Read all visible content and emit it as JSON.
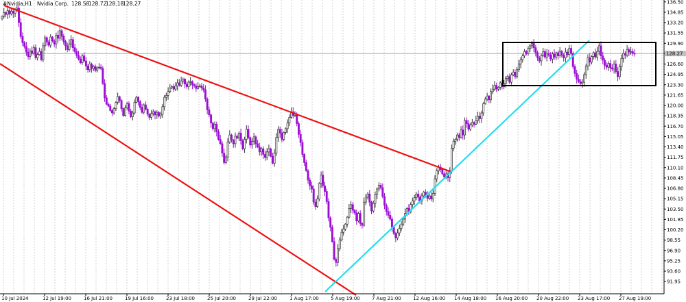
{
  "chart_data": {
    "type": "candlestick",
    "symbol": "#Nvidia,H1",
    "instrument": "Nvidia Corp.",
    "ohlc": [
      "128.58",
      "128.72",
      "128.18",
      "128.27"
    ],
    "current_price": "128.27",
    "ylim": [
      90.0,
      136.8
    ],
    "y_ticks": [
      "136.50",
      "134.85",
      "133.20",
      "131.55",
      "129.90",
      "128.25",
      "126.60",
      "124.95",
      "123.30",
      "121.65",
      "120.00",
      "118.35",
      "116.70",
      "115.05",
      "113.40",
      "111.75",
      "110.10",
      "108.45",
      "106.80",
      "105.15",
      "103.50",
      "101.85",
      "100.20",
      "98.55",
      "96.90",
      "95.25",
      "93.60",
      "91.95"
    ],
    "x_labels": [
      "10 Jul 2024",
      "12 Jul 19:00",
      "16 Jul 21:00",
      "19 Jul 16:00",
      "23 Jul 18:00",
      "25 Jul 20:00",
      "29 Jul 22:00",
      "1 Aug 17:00",
      "5 Aug 19:00",
      "7 Aug 21:00",
      "12 Aug 16:00",
      "14 Aug 18:00",
      "16 Aug 20:00",
      "20 Aug 22:00",
      "23 Aug 17:00",
      "27 Aug 19:00"
    ],
    "closes": [
      134.2,
      134.8,
      134.5,
      135.1,
      134.6,
      135.0,
      134.7,
      135.3,
      135.5,
      133.2,
      131.0,
      130.0,
      129.4,
      128.5,
      127.8,
      128.7,
      128.3,
      129.2,
      127.6,
      128.1,
      128.6,
      127.3,
      129.5,
      130.8,
      130.1,
      129.6,
      130.9,
      130.3,
      129.8,
      131.2,
      130.7,
      131.9,
      131.0,
      130.2,
      129.5,
      128.9,
      129.8,
      130.5,
      129.2,
      128.6,
      128.0,
      127.4,
      126.8,
      127.9,
      127.1,
      126.3,
      125.7,
      126.6,
      125.9,
      126.2,
      125.6,
      126.0,
      126.1,
      125.9,
      123.5,
      121.2,
      120.2,
      119.9,
      119.2,
      118.8,
      119.5,
      120.5,
      121.4,
      120.8,
      119.5,
      118.4,
      119.6,
      120.3,
      119.1,
      118.2,
      118.8,
      120.5,
      121.3,
      120.6,
      119.7,
      118.9,
      120.1,
      119.4,
      118.6,
      118.1,
      118.7,
      119.0,
      118.5,
      118.9,
      118.3,
      118.6,
      119.8,
      121.3,
      121.6,
      122.2,
      122.8,
      123.0,
      122.6,
      123.1,
      123.6,
      123.2,
      123.9,
      124.2,
      123.4,
      123.0,
      123.7,
      123.8,
      123.3,
      123.1,
      122.7,
      123.0,
      123.1,
      122.8,
      122.5,
      121.0,
      119.3,
      118.5,
      117.2,
      116.3,
      117.0,
      115.8,
      114.6,
      113.9,
      112.4,
      110.9,
      111.8,
      114.2,
      115.3,
      114.5,
      113.9,
      115.1,
      114.8,
      115.6,
      114.4,
      113.1,
      114.6,
      116.2,
      114.9,
      113.7,
      114.3,
      115.0,
      113.9,
      113.4,
      112.6,
      113.1,
      112.2,
      111.7,
      112.6,
      113.1,
      111.9,
      110.8,
      112.4,
      114.9,
      116.2,
      115.6,
      114.6,
      115.7,
      116.3,
      117.2,
      118.1,
      119.0,
      118.4,
      118.6,
      117.1,
      115.4,
      114.1,
      112.2,
      110.9,
      109.6,
      108.1,
      107.2,
      106.7,
      104.6,
      103.9,
      105.1,
      107.6,
      108.9,
      107.2,
      106.3,
      104.7,
      102.1,
      100.6,
      98.3,
      95.5,
      95.0,
      97.2,
      98.6,
      99.8,
      100.3,
      101.1,
      102.2,
      103.6,
      104.2,
      103.3,
      102.9,
      101.6,
      102.8,
      101.2,
      100.9,
      104.6,
      105.4,
      105.9,
      104.6,
      103.2,
      104.4,
      105.8,
      106.7,
      107.3,
      106.9,
      105.5,
      104.1,
      103.1,
      102.5,
      101.9,
      100.6,
      99.6,
      98.9,
      99.7,
      100.4,
      101.1,
      101.9,
      102.8,
      103.6,
      103.0,
      104.2,
      104.8,
      105.3,
      105.9,
      105.4,
      104.8,
      105.6,
      106.2,
      105.7,
      105.2,
      105.6,
      105.1,
      106.0,
      108.3,
      109.6,
      110.2,
      109.8,
      109.1,
      108.6,
      109.1,
      108.5,
      109.6,
      113.2,
      114.3,
      114.6,
      115.3,
      114.9,
      116.1,
      115.3,
      117.6,
      117.1,
      116.2,
      116.9,
      117.3,
      117.0,
      117.6,
      118.3,
      117.9,
      118.8,
      120.3,
      121.0,
      121.5,
      120.9,
      122.2,
      122.6,
      123.2,
      122.6,
      122.9,
      123.6,
      123.0,
      123.5,
      124.3,
      124.6,
      123.7,
      124.9,
      125.3,
      124.6,
      125.7,
      126.6,
      127.3,
      127.9,
      128.6,
      128.3,
      129.1,
      129.5,
      129.9,
      129.2,
      128.4,
      127.6,
      127.1,
      127.9,
      128.6,
      127.7,
      128.3,
      128.0,
      127.4,
      128.2,
      127.7,
      128.4,
      127.9,
      128.6,
      128.0,
      127.6,
      128.5,
      128.1,
      129.1,
      128.3,
      126.2,
      125.1,
      124.2,
      123.8,
      123.5,
      123.7,
      124.9,
      126.3,
      127.6,
      126.9,
      127.8,
      128.4,
      127.7,
      128.6,
      129.5,
      127.9,
      127.2,
      126.4,
      126.1,
      126.7,
      126.0,
      125.8,
      126.6,
      125.4,
      124.6,
      126.2,
      127.5,
      128.3,
      128.0,
      128.9,
      128.5,
      128.6,
      128.3,
      128.27
    ]
  }
}
